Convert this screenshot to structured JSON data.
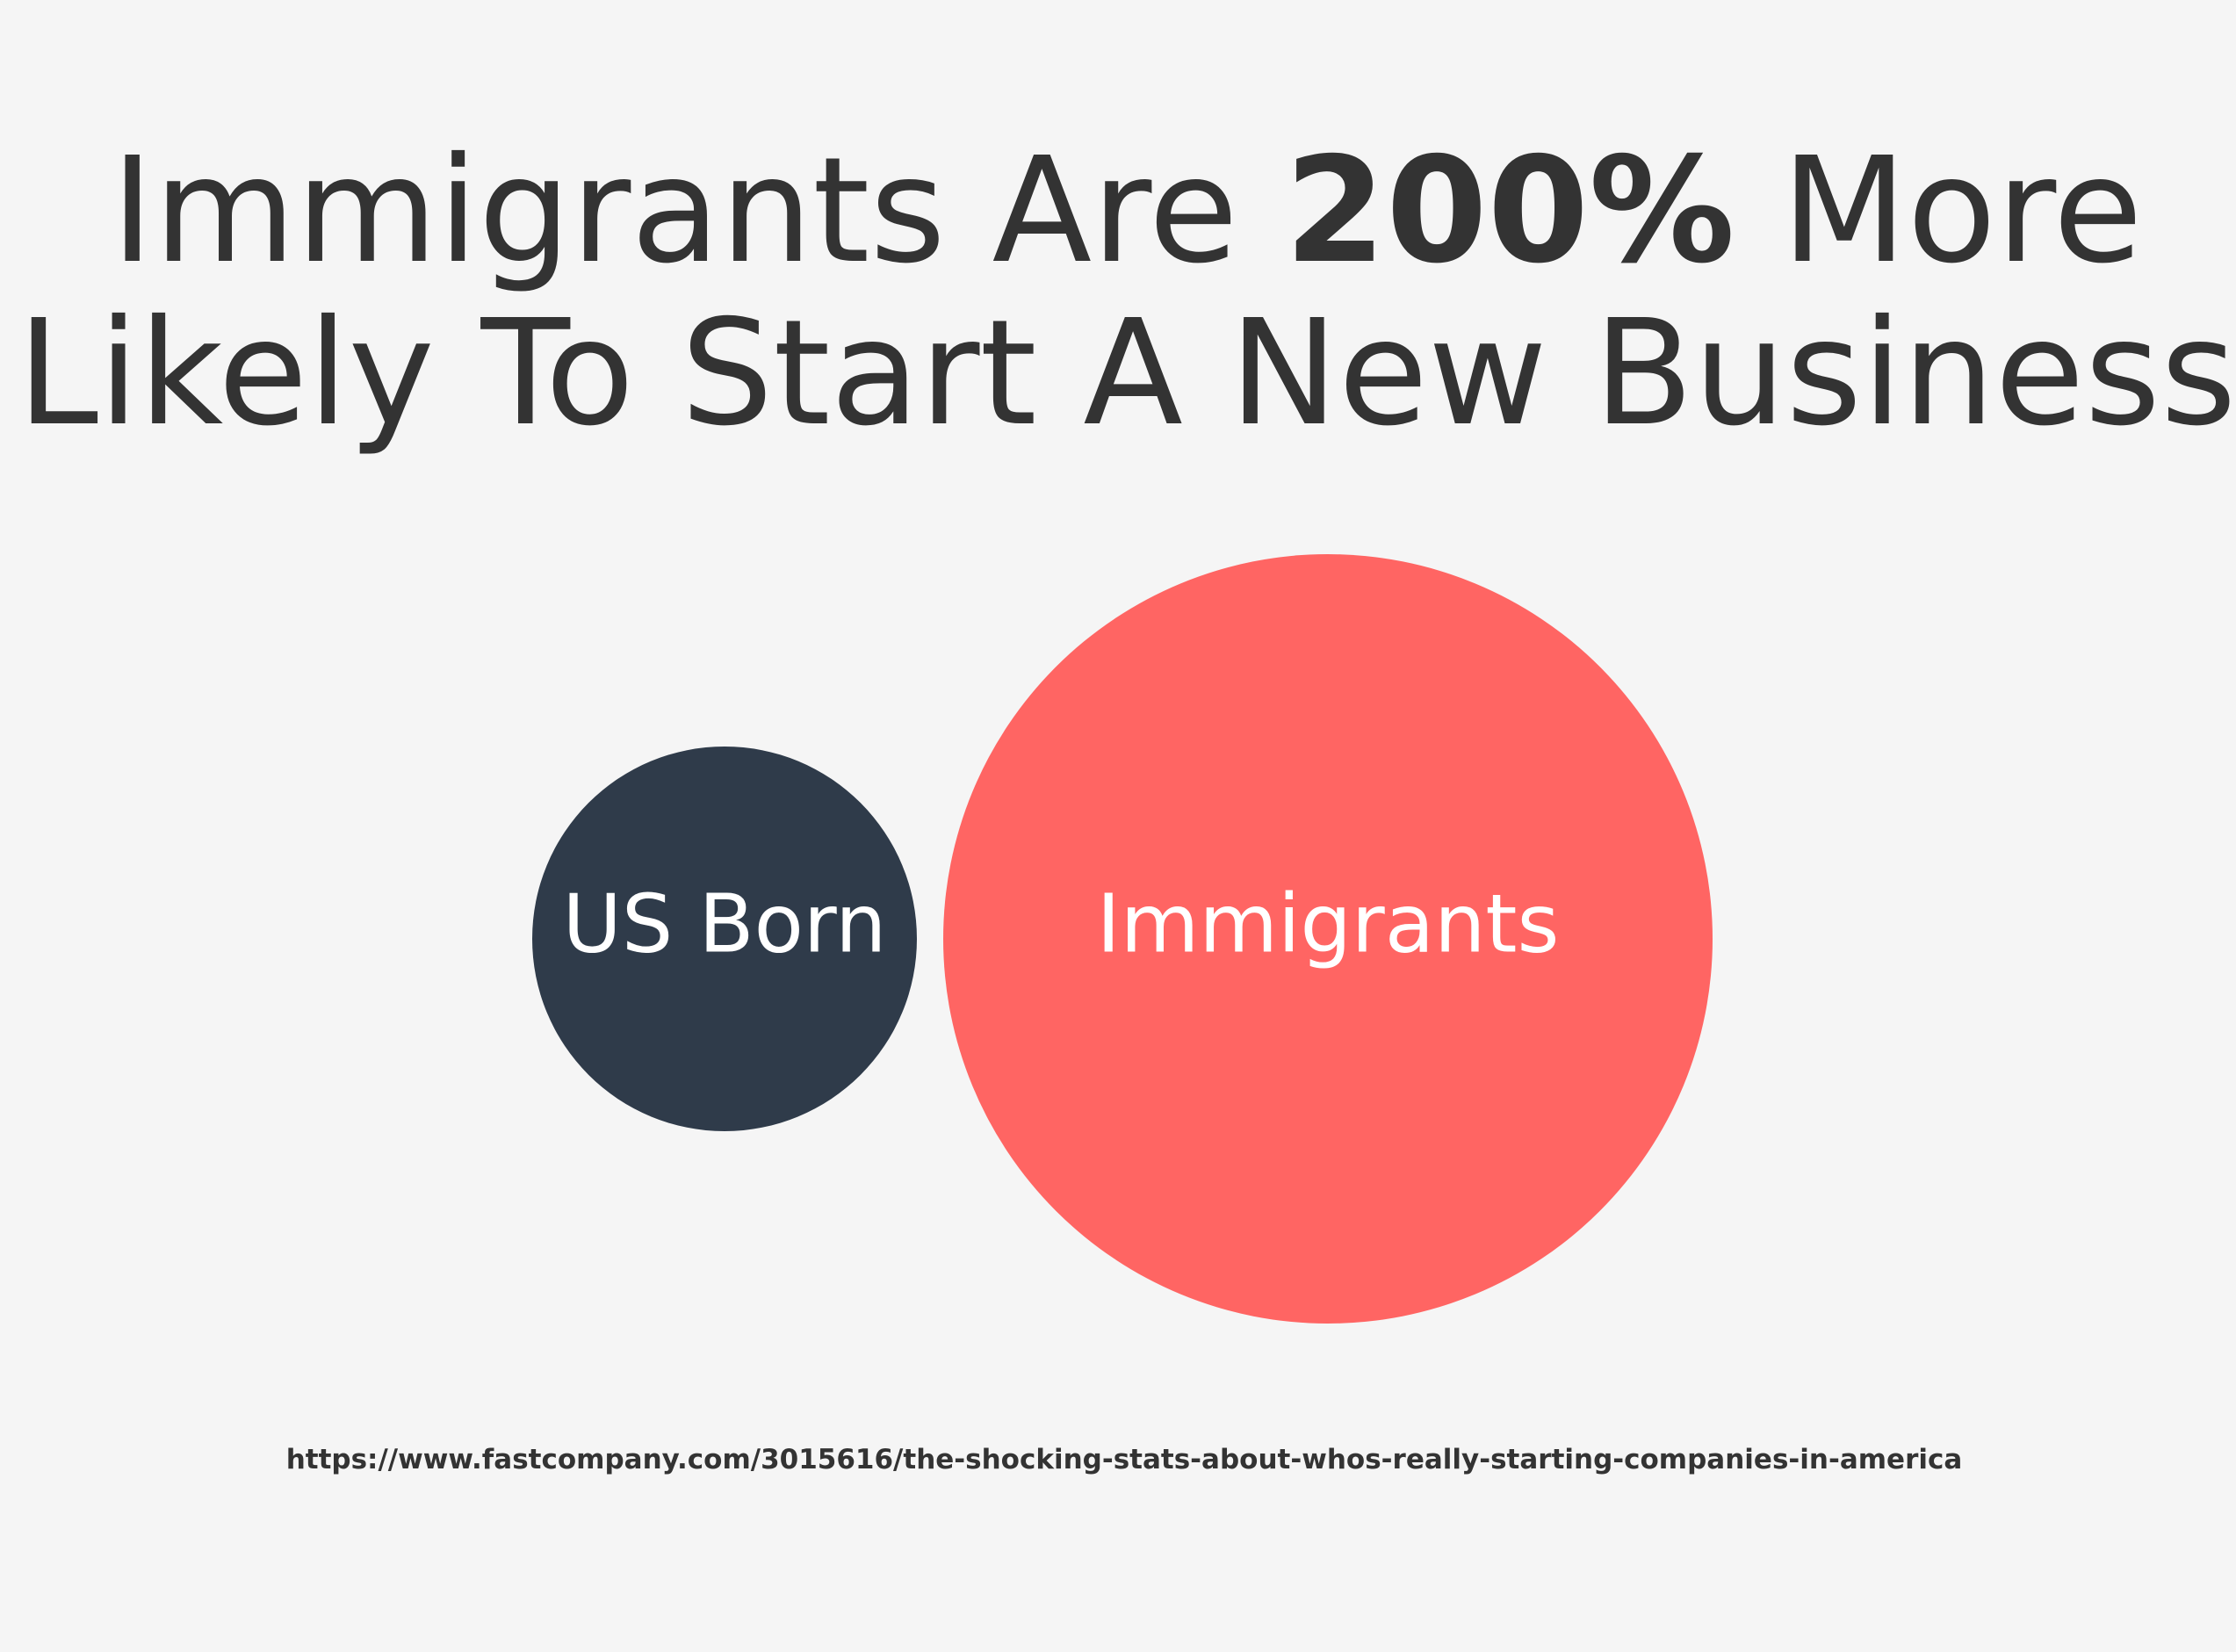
{
  "header": {
    "title_line1": [
      "Immigrants Are ",
      "200%",
      " More"
    ],
    "title_line2": "Likely To Start A New Business"
  },
  "bubbles": [
    {
      "label": "US Born"
    },
    {
      "label": "Immigrants"
    }
  ],
  "source": "https://www.fastcompany.com/3015616/the-shocking-stats-about-whos-really-starting-companies-in-america"
}
